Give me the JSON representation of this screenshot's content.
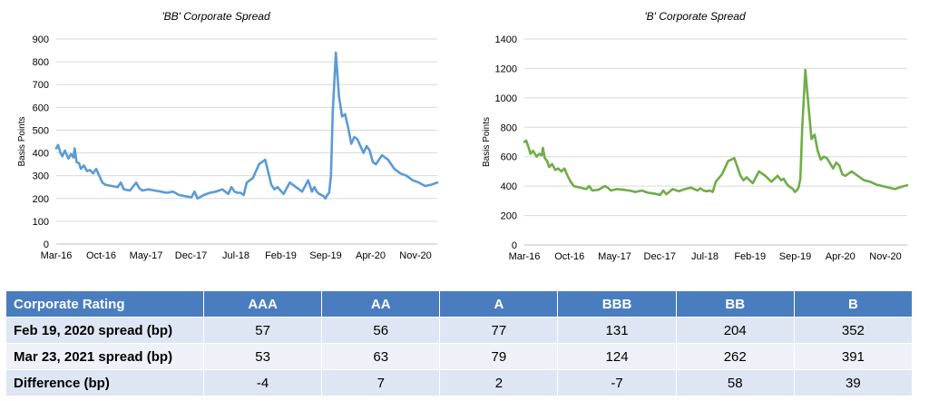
{
  "chart_data": [
    {
      "type": "line",
      "title": "'BB' Corporate Spread",
      "xlabel": "",
      "ylabel": "Basis Points",
      "ylim": [
        0,
        900
      ],
      "yticks": [
        0,
        100,
        200,
        300,
        400,
        500,
        600,
        700,
        800,
        900
      ],
      "xtick_labels": [
        "Mar-16",
        "Oct-16",
        "May-17",
        "Dec-17",
        "Jul-18",
        "Feb-19",
        "Sep-19",
        "Apr-20",
        "Nov-20"
      ],
      "xrange_months": [
        0,
        62
      ],
      "color": "#5b9bd5",
      "series": [
        {
          "name": "BB",
          "x": [
            0,
            0.3,
            0.7,
            1,
            1.4,
            2,
            2.4,
            2.8,
            3,
            3.3,
            3.7,
            4,
            4.5,
            5,
            5.5,
            6,
            6.5,
            7,
            7.5,
            8,
            9,
            10,
            10.5,
            11,
            12,
            13,
            13.5,
            14,
            15,
            16,
            17,
            18,
            19,
            20,
            21,
            22,
            22.5,
            23,
            24,
            25,
            26,
            27,
            28,
            28.5,
            29,
            29.5,
            30,
            30.5,
            31,
            32,
            33,
            34,
            35,
            35.5,
            36,
            37,
            38,
            39,
            40,
            41,
            41.6,
            42,
            42.4,
            42.8,
            43.2,
            43.5,
            43.8,
            44.1,
            44.4,
            44.7,
            45,
            45.5,
            46,
            46.5,
            47,
            47.5,
            48,
            48.5,
            49,
            50,
            50.5,
            51,
            51.5,
            52,
            53,
            54,
            55,
            56,
            57,
            58,
            59,
            60,
            61,
            62
          ],
          "values": [
            420,
            435,
            400,
            385,
            410,
            375,
            395,
            380,
            420,
            360,
            355,
            330,
            345,
            320,
            325,
            310,
            330,
            300,
            270,
            260,
            255,
            250,
            270,
            240,
            235,
            270,
            245,
            235,
            240,
            235,
            230,
            225,
            230,
            215,
            210,
            205,
            230,
            200,
            215,
            225,
            230,
            240,
            220,
            250,
            230,
            225,
            225,
            215,
            270,
            290,
            350,
            370,
            260,
            240,
            250,
            220,
            270,
            250,
            230,
            280,
            230,
            250,
            230,
            220,
            215,
            210,
            200,
            215,
            225,
            300,
            580,
            840,
            650,
            560,
            570,
            510,
            440,
            470,
            460,
            400,
            430,
            410,
            360,
            350,
            390,
            370,
            330,
            310,
            300,
            280,
            270,
            255,
            260,
            270
          ]
        }
      ]
    },
    {
      "type": "line",
      "title": "'B' Corporate Spread",
      "xlabel": "",
      "ylabel": "Basis Points",
      "ylim": [
        0,
        1400
      ],
      "yticks": [
        0,
        200,
        400,
        600,
        800,
        1000,
        1200,
        1400
      ],
      "xtick_labels": [
        "Mar-16",
        "Oct-16",
        "May-17",
        "Dec-17",
        "Jul-18",
        "Feb-19",
        "Sep-19",
        "Apr-20",
        "Nov-20"
      ],
      "xrange_months": [
        0,
        62
      ],
      "color": "#70ad47",
      "series": [
        {
          "name": "B",
          "x": [
            0,
            0.3,
            0.7,
            1,
            1.4,
            2,
            2.4,
            2.8,
            3,
            3.3,
            3.7,
            4,
            4.5,
            5,
            5.5,
            6,
            6.5,
            7,
            7.5,
            8,
            9,
            10,
            10.5,
            11,
            12,
            13,
            13.5,
            14,
            15,
            16,
            17,
            18,
            19,
            20,
            21,
            22,
            22.5,
            23,
            24,
            25,
            26,
            27,
            28,
            28.5,
            29,
            29.5,
            30,
            30.5,
            31,
            32,
            33,
            34,
            35,
            35.5,
            36,
            37,
            38,
            39,
            40,
            41,
            41.6,
            42,
            42.4,
            42.8,
            43.2,
            43.5,
            43.8,
            44.1,
            44.4,
            44.7,
            45,
            45.5,
            46,
            46.5,
            47,
            47.5,
            48,
            48.5,
            49,
            50,
            50.5,
            51,
            51.5,
            52,
            53,
            54,
            55,
            56,
            57,
            58,
            59,
            60,
            61,
            62
          ],
          "values": [
            700,
            710,
            660,
            620,
            640,
            600,
            620,
            610,
            660,
            590,
            570,
            530,
            550,
            510,
            520,
            500,
            520,
            470,
            430,
            400,
            390,
            380,
            400,
            370,
            375,
            400,
            390,
            370,
            380,
            375,
            370,
            360,
            370,
            355,
            350,
            340,
            370,
            345,
            380,
            365,
            380,
            390,
            370,
            385,
            370,
            365,
            370,
            360,
            430,
            480,
            570,
            590,
            470,
            440,
            460,
            420,
            500,
            470,
            430,
            470,
            440,
            450,
            420,
            400,
            390,
            380,
            360,
            370,
            390,
            450,
            800,
            1190,
            950,
            720,
            750,
            640,
            580,
            600,
            590,
            520,
            560,
            540,
            480,
            470,
            500,
            470,
            440,
            430,
            410,
            400,
            390,
            380,
            395,
            405
          ]
        }
      ]
    }
  ],
  "table": {
    "headers": [
      "Corporate Rating",
      "AAA",
      "AA",
      "A",
      "BBB",
      "BB",
      "B"
    ],
    "rows": [
      [
        "Feb 19, 2020 spread (bp)",
        "57",
        "56",
        "77",
        "131",
        "204",
        "352"
      ],
      [
        "Mar 23, 2021 spread (bp)",
        "53",
        "63",
        "79",
        "124",
        "262",
        "391"
      ],
      [
        "Difference (bp)",
        "-4",
        "7",
        "2",
        "-7",
        "58",
        "39"
      ]
    ]
  }
}
